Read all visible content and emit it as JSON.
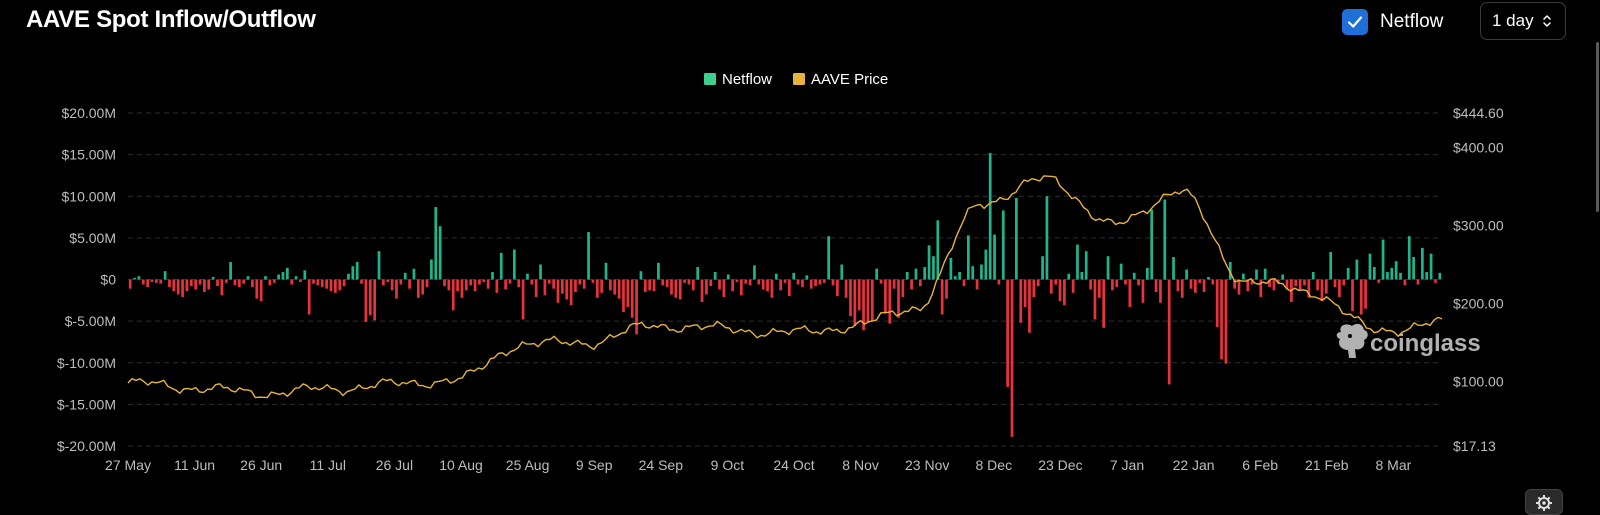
{
  "header": {
    "title": "AAVE Spot Inflow/Outflow",
    "netflow_toggle_label": "Netflow",
    "interval_value": "1 day"
  },
  "watermark": "coinglass",
  "colors": {
    "positive": "#1fb48c",
    "negative": "#e8323c",
    "price": "#e6b43c",
    "netflow_legend": "#3ecf8e",
    "checkbox": "#1f6fd8"
  },
  "chart_data": {
    "type": "bar",
    "legend": [
      {
        "name": "Netflow",
        "color": "#3ecf8e"
      },
      {
        "name": "AAVE Price",
        "color": "#e6b43c"
      }
    ],
    "left_axis": {
      "ticks": [
        "$20.00M",
        "$15.00M",
        "$10.00M",
        "$5.00M",
        "$0",
        "$-5.00M",
        "$-10.00M",
        "$-15.00M",
        "$-20.00M"
      ],
      "range": [
        -20,
        20
      ],
      "unit": "M USD"
    },
    "right_axis": {
      "ticks": [
        "$444.60",
        "$400.00",
        "$300.00",
        "$200.00",
        "$100.00",
        "$17.13"
      ],
      "range": [
        17.13,
        444.6
      ]
    },
    "x_tick_labels": [
      "27 May",
      "11 Jun",
      "26 Jun",
      "11 Jul",
      "26 Jul",
      "10 Aug",
      "25 Aug",
      "9 Sep",
      "24 Sep",
      "9 Oct",
      "24 Oct",
      "8 Nov",
      "23 Nov",
      "8 Dec",
      "23 Dec",
      "7 Jan",
      "22 Jan",
      "6 Feb",
      "21 Feb",
      "8 Mar"
    ],
    "grid": true,
    "legend_position": "top-center",
    "series": [
      {
        "name": "Netflow",
        "kind": "bar",
        "values": [
          -1.1,
          0.2,
          0.4,
          -0.6,
          -0.9,
          -0.3,
          -0.4,
          -0.5,
          1.0,
          -0.9,
          -1.4,
          -1.8,
          -2.1,
          -1.4,
          -0.8,
          -1.2,
          -0.6,
          -1.5,
          -1.2,
          0.3,
          -0.8,
          -1.9,
          -0.4,
          2.1,
          -0.7,
          -0.9,
          -0.5,
          0.4,
          -0.9,
          -2.3,
          -2.6,
          0.4,
          -0.7,
          -0.4,
          0.6,
          0.9,
          1.4,
          -0.6,
          0.4,
          -0.3,
          1.1,
          -4.2,
          -0.5,
          -0.7,
          -0.9,
          -1.1,
          -1.4,
          -1.6,
          -1.3,
          -0.8,
          0.7,
          1.6,
          2.1,
          -0.5,
          -5.1,
          -4.3,
          -4.9,
          3.4,
          -0.7,
          -0.3,
          -1.3,
          -2.3,
          -0.6,
          0.8,
          -1.1,
          1.3,
          -2.2,
          -1.8,
          -0.9,
          2.4,
          8.7,
          6.4,
          -0.8,
          -1.3,
          -3.7,
          -1.4,
          -2.2,
          -1.3,
          -0.7,
          -1.4,
          -0.6,
          -0.3,
          -1.1,
          0.9,
          -1.6,
          3.2,
          -1.2,
          -0.5,
          3.6,
          -0.9,
          -4.8,
          0.7,
          -0.6,
          -2.1,
          1.8,
          -1.9,
          -0.5,
          -1.1,
          -2.8,
          -1.7,
          -2.4,
          -3.1,
          -1.5,
          -0.6,
          -1.1,
          5.7,
          -0.4,
          -2.2,
          -1.6,
          2.0,
          -1.3,
          -1.8,
          -2.3,
          -3.9,
          -3.3,
          -4.6,
          -6.6,
          1.0,
          -1.5,
          -1.3,
          -1.4,
          2.0,
          -0.7,
          -0.9,
          -1.8,
          -2.2,
          -2.4,
          -0.4,
          -0.6,
          -1.3,
          1.5,
          -2.7,
          -1.8,
          -0.8,
          0.9,
          -1.2,
          -2.1,
          0.6,
          -1.4,
          -0.3,
          -1.9,
          -0.5,
          -0.7,
          1.7,
          -0.6,
          -1.2,
          -1.4,
          -2.2,
          0.7,
          -1.3,
          -0.4,
          -2.0,
          0.8,
          -0.6,
          -0.9,
          0.5,
          -1.1,
          -0.8,
          -0.6,
          -0.4,
          5.2,
          -0.7,
          -2.0,
          1.8,
          -2.2,
          -4.4,
          -5.6,
          -3.7,
          -6.1,
          -5.2,
          -5.0,
          1.3,
          -0.5,
          -4.1,
          -5.3,
          -1.1,
          -4.6,
          -2.1,
          0.9,
          -1.2,
          1.3,
          -0.8,
          1.5,
          4.1,
          2.8,
          7.1,
          -4.2,
          -2.3,
          2.6,
          0.4,
          0.9,
          -0.8,
          5.3,
          1.6,
          -1.2,
          1.8,
          3.6,
          15.2,
          5.4,
          -0.6,
          8.3,
          -12.9,
          -18.9,
          9.8,
          -5.2,
          -3.3,
          -6.4,
          -2.1,
          -0.8,
          2.8,
          10.0,
          -1.7,
          -0.6,
          -2.6,
          -3.1,
          0.7,
          -1.6,
          4.2,
          0.9,
          3.4,
          -1.2,
          -4.8,
          -2.2,
          -5.8,
          2.8,
          -1.3,
          -0.9,
          1.9,
          -0.6,
          -3.3,
          0.8,
          -0.7,
          -2.8,
          1.4,
          8.4,
          -1.5,
          -2.8,
          9.6,
          -12.6,
          2.7,
          -1.4,
          -2.2,
          1.2,
          -1.1,
          -1.6,
          -0.4,
          -1.5,
          0.3,
          -0.6,
          -5.7,
          -9.6,
          -10.1,
          2.1,
          -1.1,
          -1.8,
          0.7,
          -1.4,
          -0.6,
          1.2,
          -2.1,
          1.3,
          -0.9,
          -1.3,
          -0.5,
          0.6,
          -1.2,
          -2.7,
          -0.8,
          -1.3,
          -0.7,
          -2.2,
          0.9,
          -1.3,
          -2.6,
          -1.7,
          3.3,
          -0.9,
          -2.1,
          -0.7,
          1.4,
          -3.8,
          2.4,
          -4.2,
          -3.5,
          3.1,
          1.5,
          -0.4,
          4.8,
          0.9,
          1.4,
          2.2,
          0.8,
          -0.7,
          5.2,
          2.7,
          -0.6,
          3.8,
          0.9,
          3.1,
          -0.4,
          0.8
        ],
        "colors_rule": "positive green, negative red"
      },
      {
        "name": "AAVE Price",
        "kind": "line",
        "axis": "right",
        "dates": [
          "2024-05-27",
          "2024-06-11",
          "2024-06-26",
          "2024-07-11",
          "2024-07-26",
          "2024-08-10",
          "2024-08-25",
          "2024-09-09",
          "2024-09-24",
          "2024-10-09",
          "2024-10-24",
          "2024-11-08",
          "2024-11-23",
          "2024-12-08",
          "2024-12-23",
          "2025-01-07",
          "2025-01-22",
          "2025-02-06",
          "2025-02-21",
          "2025-03-08",
          "2025-03-19"
        ],
        "values": [
          98,
          92,
          85,
          90,
          96,
          102,
          148,
          150,
          172,
          168,
          162,
          170,
          195,
          330,
          360,
          300,
          345,
          230,
          215,
          165,
          175
        ]
      }
    ]
  },
  "toolbar": {
    "settings_icon": "gear-icon"
  }
}
